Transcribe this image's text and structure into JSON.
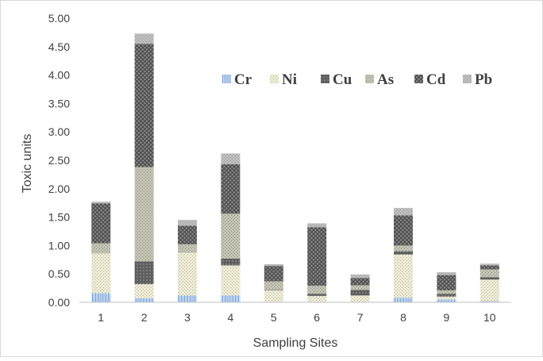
{
  "chart_data": {
    "type": "bar",
    "stacked": true,
    "title": "",
    "xlabel": "Sampling Sites",
    "ylabel": "Toxic units",
    "ylim": [
      0,
      5
    ],
    "ytick_step": 0.5,
    "ytick_labels": [
      "0.00",
      "0.50",
      "1.00",
      "1.50",
      "2.00",
      "2.50",
      "3.00",
      "3.50",
      "4.00",
      "4.50",
      "5.00"
    ],
    "grid": false,
    "legend_position": "top-right",
    "categories": [
      "1",
      "2",
      "3",
      "4",
      "5",
      "6",
      "7",
      "8",
      "9",
      "10"
    ],
    "series": [
      {
        "name": "Cr",
        "color": "#a9c4e8",
        "values": [
          0.16,
          0.07,
          0.12,
          0.12,
          0.01,
          0.01,
          0.01,
          0.08,
          0.05,
          0.02
        ]
      },
      {
        "name": "Ni",
        "color": "#e2dfc4",
        "values": [
          0.7,
          0.25,
          0.75,
          0.53,
          0.2,
          0.1,
          0.11,
          0.76,
          0.05,
          0.38
        ]
      },
      {
        "name": "Cu",
        "color": "#6e6e6e",
        "values": [
          0.0,
          0.4,
          0.0,
          0.12,
          0.01,
          0.04,
          0.1,
          0.06,
          0.05,
          0.04
        ]
      },
      {
        "name": "As",
        "color": "#b4b4a4",
        "values": [
          0.18,
          1.66,
          0.15,
          0.79,
          0.15,
          0.14,
          0.08,
          0.1,
          0.06,
          0.14
        ]
      },
      {
        "name": "Cd",
        "color": "#7a7a7a",
        "values": [
          0.7,
          2.17,
          0.33,
          0.87,
          0.27,
          1.03,
          0.13,
          0.53,
          0.27,
          0.07
        ]
      },
      {
        "name": "Pb",
        "color": "#b4b4b4",
        "values": [
          0.03,
          0.18,
          0.1,
          0.19,
          0.03,
          0.07,
          0.06,
          0.13,
          0.05,
          0.03
        ]
      }
    ]
  }
}
